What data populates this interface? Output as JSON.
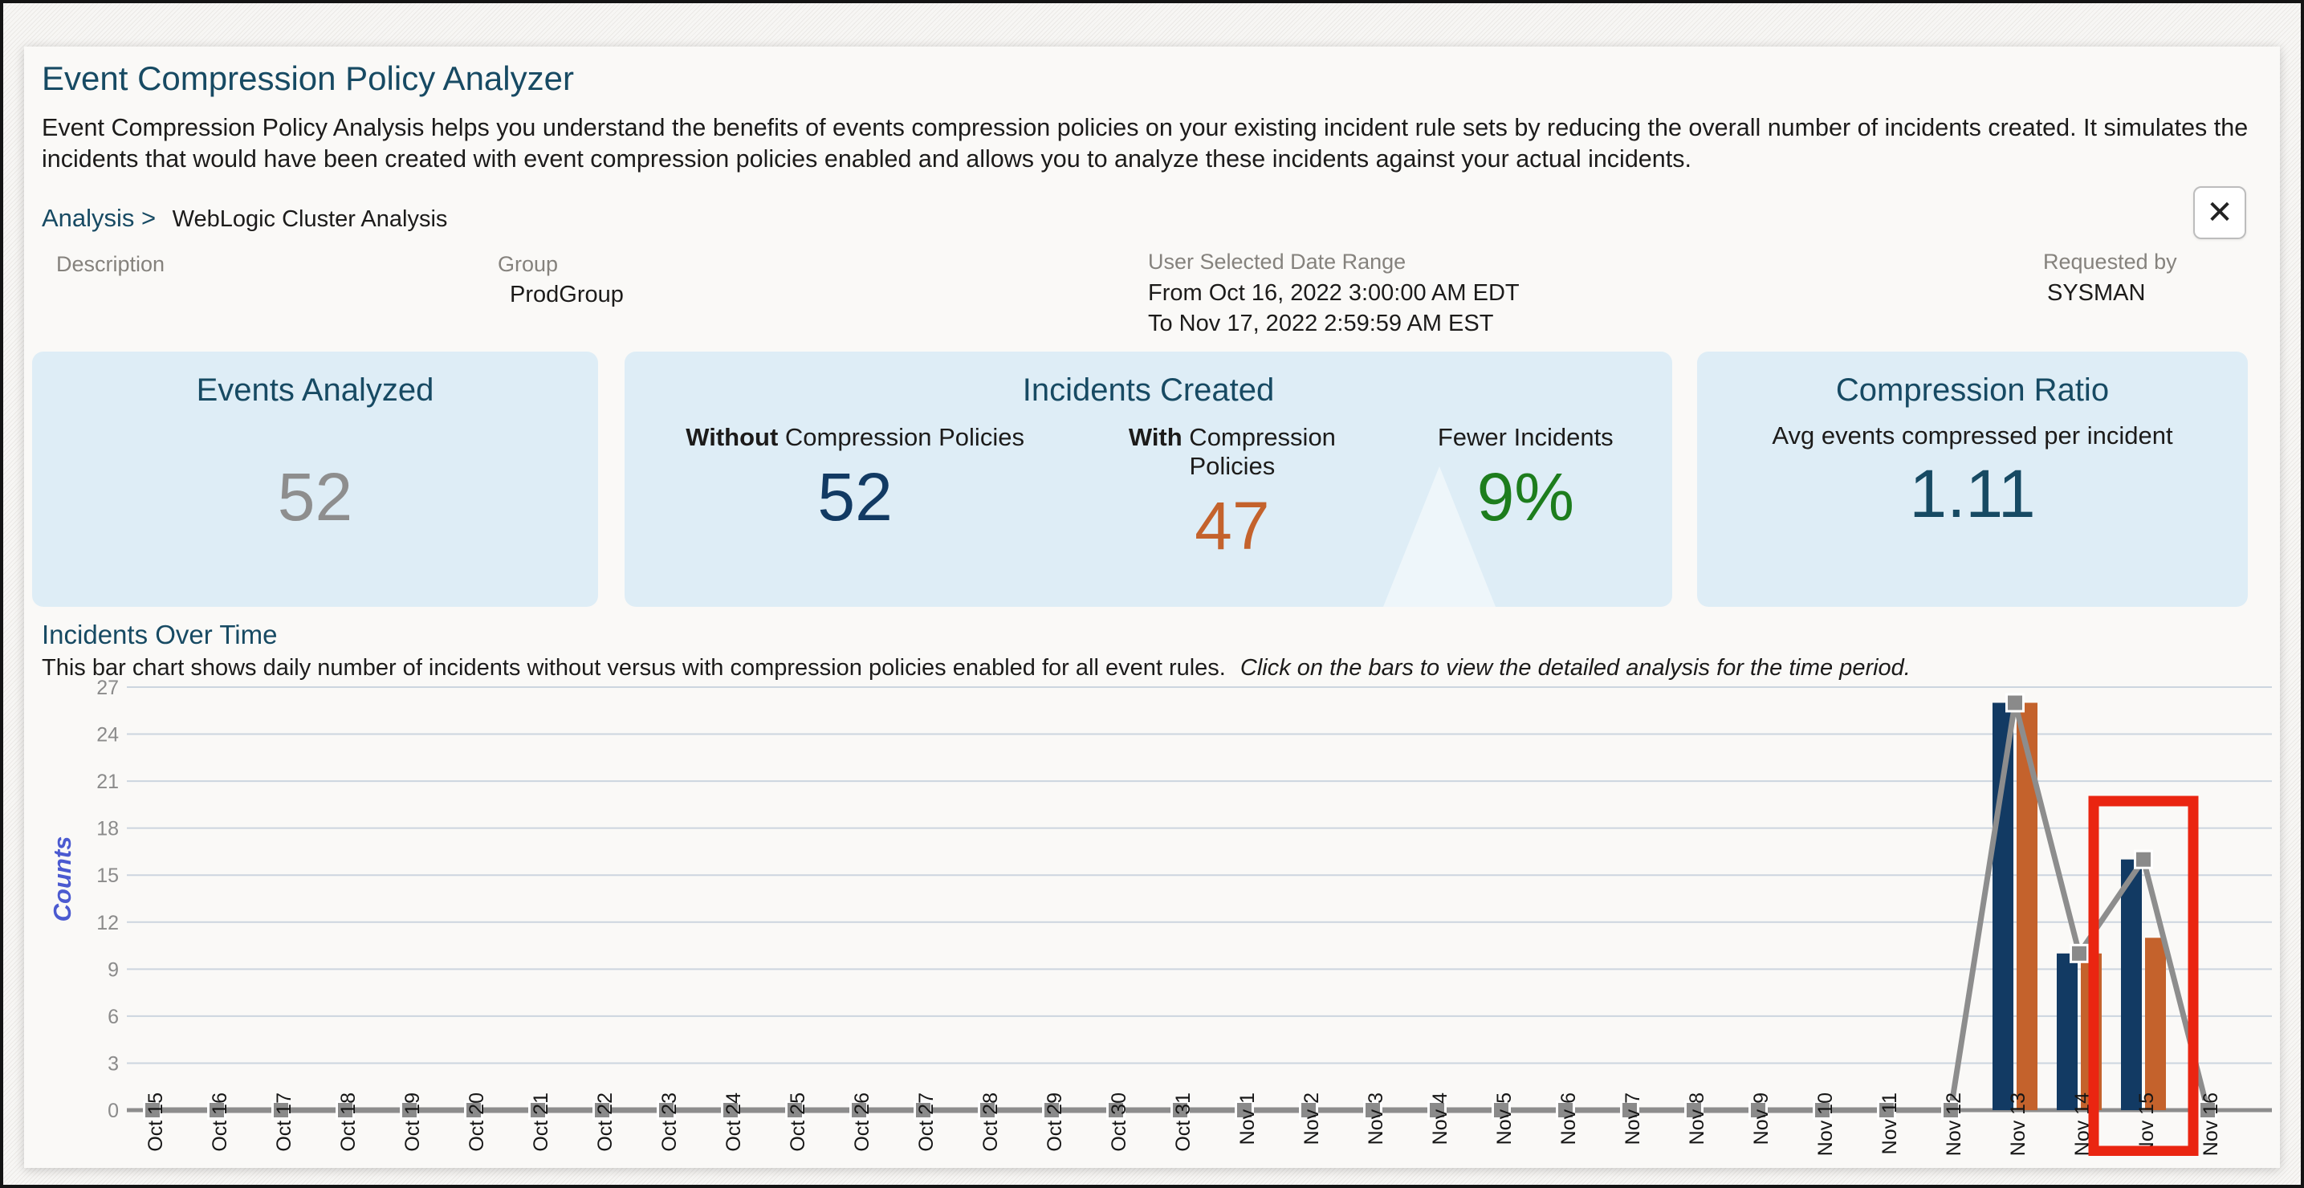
{
  "page": {
    "title": "Event Compression Policy Analyzer",
    "description": "Event Compression Policy Analysis helps you understand the benefits of events compression policies on your existing incident rule sets by reducing the overall number of incidents created. It simulates the incidents that would have been created with event compression policies enabled and allows you to analyze these incidents against your actual incidents."
  },
  "icons": {
    "close": "✕"
  },
  "breadcrumb": {
    "link": "Analysis >",
    "current": "WebLogic Cluster Analysis"
  },
  "meta": {
    "description_label": "Description",
    "group_label": "Group",
    "group_value": "ProdGroup",
    "date_range_label": "User Selected Date Range",
    "date_from": "From Oct 16, 2022 3:00:00 AM EDT",
    "date_to": "To Nov 17, 2022 2:59:59 AM EST",
    "requested_by_label": "Requested by",
    "requested_by_value": "SYSMAN"
  },
  "cards": {
    "events_analyzed": {
      "title": "Events Analyzed",
      "value": "52"
    },
    "incidents_created": {
      "title": "Incidents Created",
      "without_bold": "Without",
      "without_rest": " Compression Policies",
      "without_value": "52",
      "with_bold": "With",
      "with_rest": " Compression Policies",
      "with_value": "47",
      "fewer_label": "Fewer Incidents",
      "fewer_value": "9%"
    },
    "compression_ratio": {
      "title": "Compression Ratio",
      "subtitle": "Avg events compressed per incident",
      "value": "1.11"
    }
  },
  "section": {
    "title": "Incidents Over Time",
    "subtitle_normal": "This bar chart shows daily number of incidents without versus with compression policies enabled for all event rules.",
    "subtitle_italic": "Click on the bars to view the detailed analysis for the time period."
  },
  "chart_data": {
    "type": "bar",
    "categories": [
      "Oct 15",
      "Oct 16",
      "Oct 17",
      "Oct 18",
      "Oct 19",
      "Oct 20",
      "Oct 21",
      "Oct 22",
      "Oct 23",
      "Oct 24",
      "Oct 25",
      "Oct 26",
      "Oct 27",
      "Oct 28",
      "Oct 29",
      "Oct 30",
      "Oct 31",
      "Nov 1",
      "Nov 2",
      "Nov 3",
      "Nov 4",
      "Nov 5",
      "Nov 6",
      "Nov 7",
      "Nov 8",
      "Nov 9",
      "Nov 10",
      "Nov 11",
      "Nov 12",
      "Nov 13",
      "Nov 14",
      "Nov 15",
      "Nov 16"
    ],
    "series": [
      {
        "name": "Without Compression Policies",
        "color": "#123a63",
        "values": [
          0,
          0,
          0,
          0,
          0,
          0,
          0,
          0,
          0,
          0,
          0,
          0,
          0,
          0,
          0,
          0,
          0,
          0,
          0,
          0,
          0,
          0,
          0,
          0,
          0,
          0,
          0,
          0,
          0,
          26,
          10,
          16,
          0
        ]
      },
      {
        "name": "With Compression Policies",
        "color": "#c4622c",
        "values": [
          0,
          0,
          0,
          0,
          0,
          0,
          0,
          0,
          0,
          0,
          0,
          0,
          0,
          0,
          0,
          0,
          0,
          0,
          0,
          0,
          0,
          0,
          0,
          0,
          0,
          0,
          0,
          0,
          0,
          26,
          10,
          11,
          0
        ]
      }
    ],
    "line_follows": "Without Compression Policies",
    "title": "Incidents Over Time",
    "xlabel": "",
    "ylabel": "Counts",
    "ylim": [
      0,
      27
    ],
    "yticks": [
      0,
      3,
      6,
      9,
      12,
      15,
      18,
      21,
      24,
      27
    ],
    "grid": true,
    "legend": false,
    "highlight_category": "Nov 15",
    "colors": {
      "gridline": "#ccd5df",
      "axis": "#8d8d8d",
      "line": "#8d8d8d",
      "marker_fill": "#8a8a8a",
      "marker_stroke": "#ffffff",
      "y_tick_text": "#8b8b8b",
      "x_tick_text": "#161616",
      "y_axis_title": "#4b5ad0",
      "highlight": "#ea2511"
    }
  }
}
